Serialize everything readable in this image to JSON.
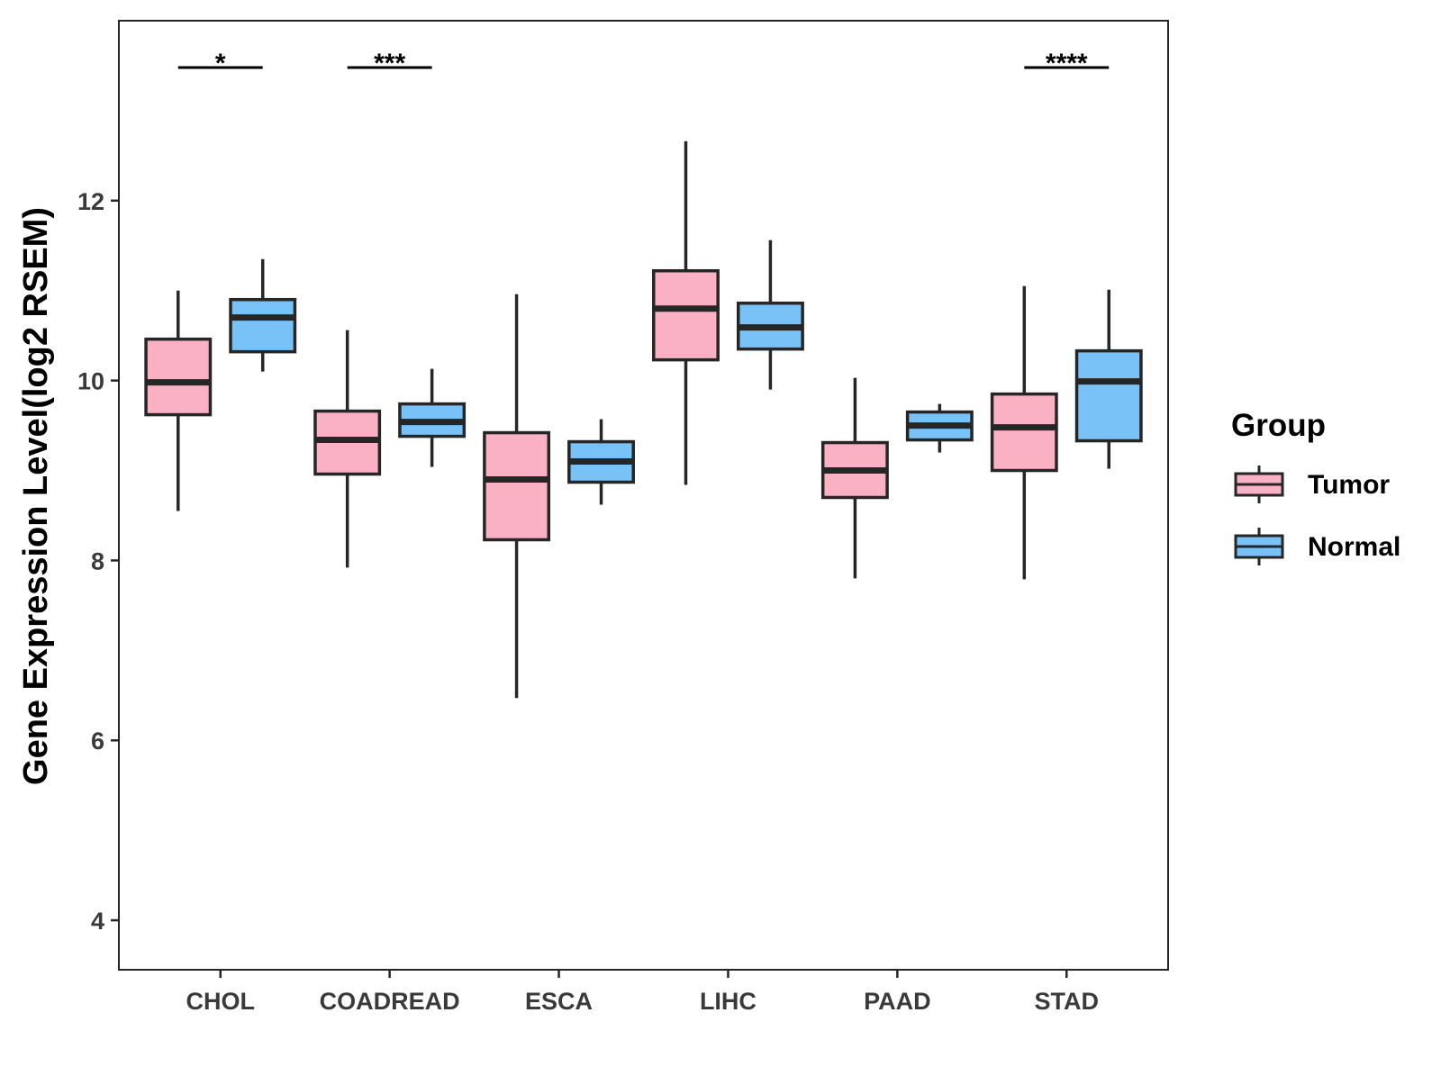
{
  "chart_data": {
    "type": "boxplot",
    "title": "",
    "xlabel": "",
    "ylabel": "Gene Expression Level(log2 RSEM)",
    "ylim": [
      3.45,
      14.0
    ],
    "yticks": [
      4,
      6,
      8,
      10,
      12
    ],
    "grid": false,
    "legend": {
      "title": "Group",
      "placement": "right",
      "entries": [
        "Tumor",
        "Normal"
      ]
    },
    "colors": {
      "Tumor": "#fbb1c4",
      "Normal": "#78c2f8",
      "stroke": "#262626"
    },
    "categories": [
      "CHOL",
      "COADREAD",
      "ESCA",
      "LIHC",
      "PAAD",
      "STAD"
    ],
    "series": [
      {
        "name": "Tumor",
        "boxes": [
          {
            "min": 8.55,
            "q1": 9.62,
            "median": 9.98,
            "q3": 10.46,
            "max": 11.0
          },
          {
            "min": 7.92,
            "q1": 8.96,
            "median": 9.34,
            "q3": 9.66,
            "max": 10.56
          },
          {
            "min": 6.47,
            "q1": 8.23,
            "median": 8.9,
            "q3": 9.42,
            "max": 10.96
          },
          {
            "min": 8.84,
            "q1": 10.23,
            "median": 10.8,
            "q3": 11.22,
            "max": 12.66
          },
          {
            "min": 7.8,
            "q1": 8.7,
            "median": 9.0,
            "q3": 9.31,
            "max": 10.03
          },
          {
            "min": 7.79,
            "q1": 9.0,
            "median": 9.48,
            "q3": 9.85,
            "max": 11.05
          }
        ]
      },
      {
        "name": "Normal",
        "boxes": [
          {
            "min": 10.1,
            "q1": 10.32,
            "median": 10.7,
            "q3": 10.9,
            "max": 11.35
          },
          {
            "min": 9.04,
            "q1": 9.38,
            "median": 9.54,
            "q3": 9.74,
            "max": 10.13
          },
          {
            "min": 8.62,
            "q1": 8.87,
            "median": 9.1,
            "q3": 9.32,
            "max": 9.57
          },
          {
            "min": 9.9,
            "q1": 10.35,
            "median": 10.59,
            "q3": 10.86,
            "max": 11.56
          },
          {
            "min": 9.2,
            "q1": 9.34,
            "median": 9.5,
            "q3": 9.65,
            "max": 9.74
          },
          {
            "min": 9.02,
            "q1": 9.33,
            "median": 9.99,
            "q3": 10.33,
            "max": 11.01
          }
        ]
      }
    ],
    "annotations": [
      {
        "category": "CHOL",
        "label": "*"
      },
      {
        "category": "COADREAD",
        "label": "***"
      },
      {
        "category": "STAD",
        "label": "****"
      }
    ]
  }
}
